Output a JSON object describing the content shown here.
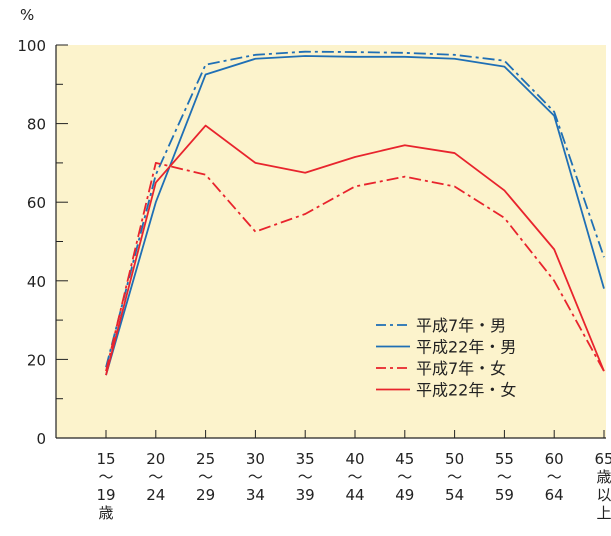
{
  "chart_data": {
    "type": "line",
    "title": "",
    "ylabel": "%",
    "xlabel": "",
    "ylim": [
      0,
      100
    ],
    "yticks": [
      "0",
      "20",
      "40",
      "60",
      "80",
      "100"
    ],
    "categories": [
      {
        "top": "15",
        "mid": "〜",
        "bot": "19",
        "extra": "歳"
      },
      {
        "top": "20",
        "mid": "〜",
        "bot": "24",
        "extra": ""
      },
      {
        "top": "25",
        "mid": "〜",
        "bot": "29",
        "extra": ""
      },
      {
        "top": "30",
        "mid": "〜",
        "bot": "34",
        "extra": ""
      },
      {
        "top": "35",
        "mid": "〜",
        "bot": "39",
        "extra": ""
      },
      {
        "top": "40",
        "mid": "〜",
        "bot": "44",
        "extra": ""
      },
      {
        "top": "45",
        "mid": "〜",
        "bot": "49",
        "extra": ""
      },
      {
        "top": "50",
        "mid": "〜",
        "bot": "54",
        "extra": ""
      },
      {
        "top": "55",
        "mid": "〜",
        "bot": "59",
        "extra": ""
      },
      {
        "top": "60",
        "mid": "〜",
        "bot": "64",
        "extra": ""
      },
      {
        "top": "65",
        "mid": "歳",
        "bot": "以",
        "extra": "上"
      }
    ],
    "series": [
      {
        "name": "平成7年・男",
        "color": "#1f6fb5",
        "dash": "dashdot",
        "values": [
          18,
          67,
          95,
          97.5,
          98.3,
          98.2,
          98,
          97.5,
          96,
          83,
          46
        ]
      },
      {
        "name": "平成22年・男",
        "color": "#1f6fb5",
        "dash": "solid",
        "values": [
          16,
          60,
          92.5,
          96.5,
          97.2,
          97,
          97,
          96.5,
          94.5,
          82,
          38
        ]
      },
      {
        "name": "平成7年・女",
        "color": "#e8242d",
        "dash": "dashdot",
        "values": [
          17,
          70,
          67,
          52.5,
          57,
          64,
          66.5,
          64,
          56,
          40,
          17
        ]
      },
      {
        "name": "平成22年・女",
        "color": "#e8242d",
        "dash": "solid",
        "values": [
          16,
          65,
          79.5,
          70,
          67.5,
          71.5,
          74.5,
          72.5,
          63,
          48,
          17
        ]
      }
    ],
    "legend_position": "bottom-right",
    "background_color": "#fcf3cc",
    "grid": false
  }
}
